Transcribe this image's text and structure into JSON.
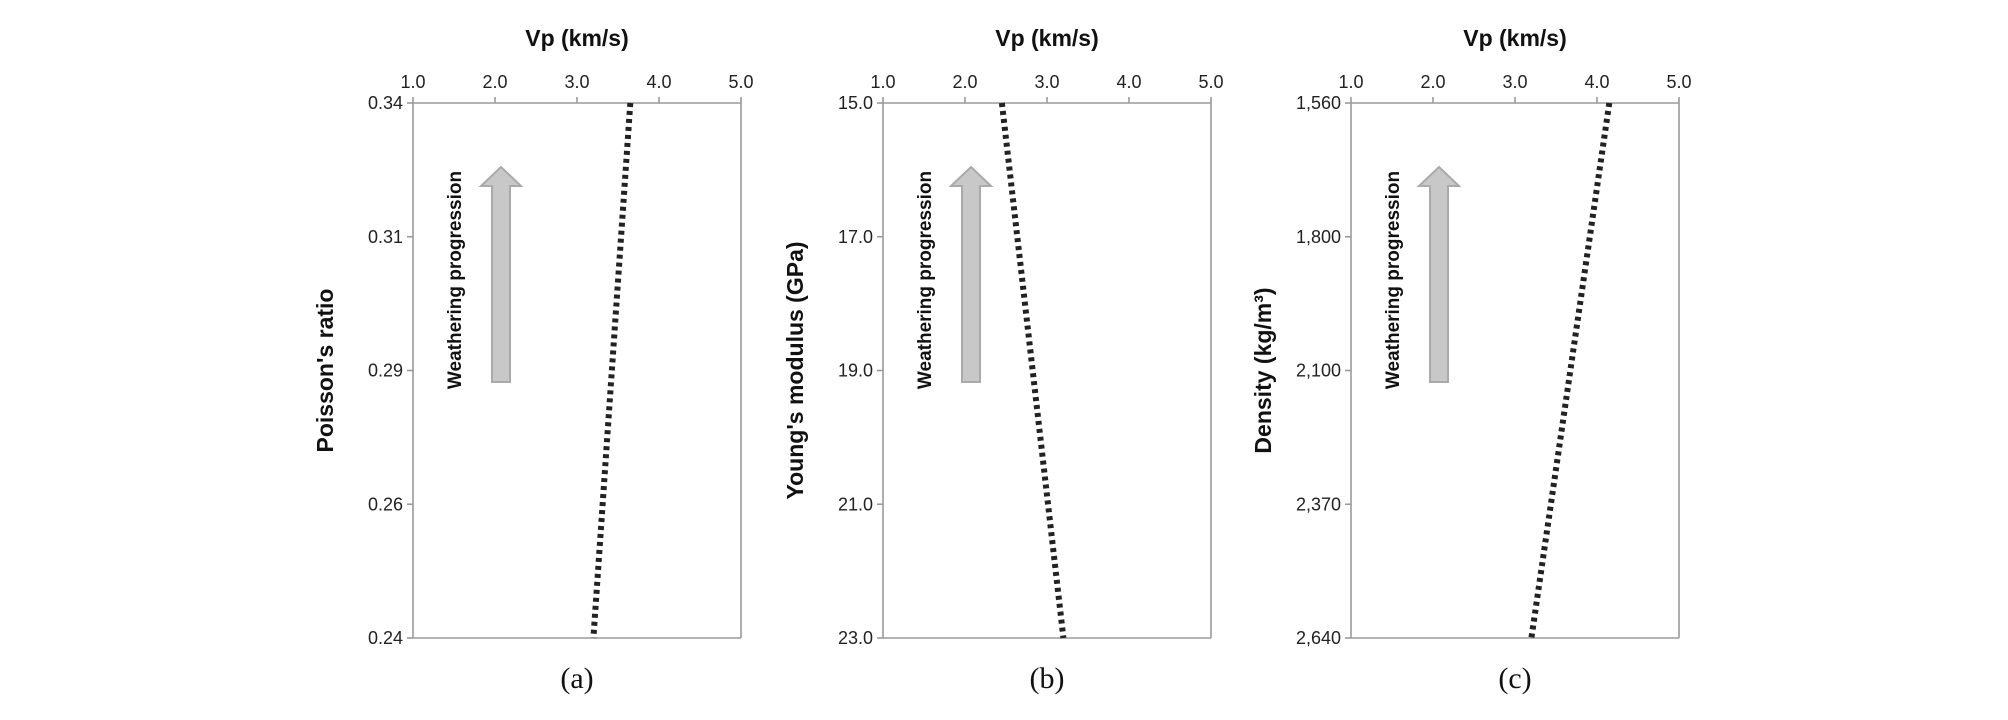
{
  "chart_data": [
    {
      "type": "line",
      "panel_label": "(a)",
      "xlabel": "Vp (km/s)",
      "ylabel": "Poisson's ratio",
      "xlim": [
        1.0,
        5.0
      ],
      "x_ticks": [
        "1.0",
        "2.0",
        "3.0",
        "4.0",
        "5.0"
      ],
      "ylim": [
        0.34,
        0.24
      ],
      "y_ticks": [
        "0.34",
        "0.31",
        "0.29",
        "0.26",
        "0.24"
      ],
      "annotation": "Weathering  progression",
      "series": [
        {
          "name": "trend",
          "style": "dotted",
          "points": [
            [
              3.65,
              0.34
            ],
            [
              3.2,
              0.24
            ]
          ]
        }
      ]
    },
    {
      "type": "line",
      "panel_label": "(b)",
      "xlabel": "Vp (km/s)",
      "ylabel": "Young's modulus (GPa)",
      "xlim": [
        1.0,
        5.0
      ],
      "x_ticks": [
        "1.0",
        "2.0",
        "3.0",
        "4.0",
        "5.0"
      ],
      "ylim": [
        15.0,
        23.0
      ],
      "y_ticks": [
        "15.0",
        "17.0",
        "19.0",
        "21.0",
        "23.0"
      ],
      "annotation": "Weathering  progression",
      "series": [
        {
          "name": "trend",
          "style": "dotted",
          "points": [
            [
              2.45,
              15.0
            ],
            [
              3.2,
              23.0
            ]
          ]
        }
      ]
    },
    {
      "type": "line",
      "panel_label": "(c)",
      "xlabel": "Vp (km/s)",
      "ylabel": "Density (kg/m³)",
      "xlim": [
        1.0,
        5.0
      ],
      "x_ticks": [
        "1.0",
        "2.0",
        "3.0",
        "4.0",
        "5.0"
      ],
      "ylim": [
        1560,
        2640
      ],
      "y_ticks": [
        "1,560",
        "1,800",
        "2,100",
        "2,370",
        "2,640"
      ],
      "annotation": "Weathering  progression",
      "series": [
        {
          "name": "trend",
          "style": "dotted",
          "points": [
            [
              4.15,
              1560
            ],
            [
              3.2,
              2640
            ]
          ]
        }
      ]
    }
  ],
  "colors": {
    "axis": "#9a9a9a",
    "line": "#222222",
    "arrow_fill": "#c8c8c8",
    "arrow_stroke": "#aaaaaa"
  }
}
